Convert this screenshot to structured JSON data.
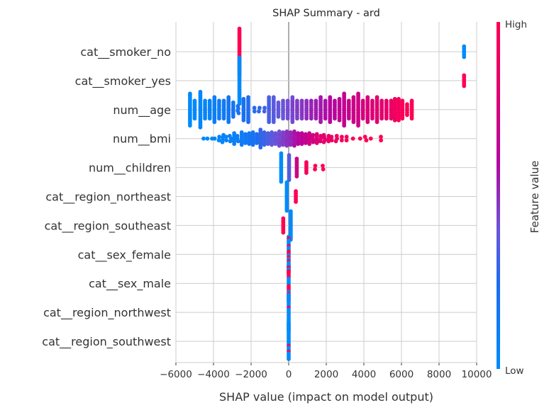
{
  "chart_data": {
    "type": "scatter",
    "subtype": "shap-beeswarm",
    "title": "SHAP Summary - ard",
    "xlabel": "SHAP value (impact on model output)",
    "ylabel": "",
    "xlim": [
      -6000,
      10000
    ],
    "xticks": [
      -6000,
      -4000,
      -2000,
      0,
      2000,
      4000,
      6000,
      8000,
      10000
    ],
    "xtick_labels": [
      "−6000",
      "−4000",
      "−2000",
      "0",
      "2000",
      "4000",
      "6000",
      "8000",
      "10000"
    ],
    "grid": true,
    "colorbar": {
      "label": "Feature value",
      "high_label": "High",
      "low_label": "Low",
      "low_color": "#008bfb",
      "high_color": "#ff0051",
      "placement": "right"
    },
    "features": [
      {
        "name": "cat__smoker_no",
        "clusters": [
          {
            "x": -2620,
            "count": 26,
            "color_value": 1.0
          },
          {
            "x": 9330,
            "count": 6,
            "color_value": 0.0
          }
        ]
      },
      {
        "name": "cat__smoker_yes",
        "clusters": [
          {
            "x": -2620,
            "count": 26,
            "color_value": 0.0
          },
          {
            "x": 9330,
            "count": 6,
            "color_value": 1.0
          }
        ]
      },
      {
        "name": "num__age",
        "clusters": [
          {
            "x": -5250,
            "count": 18,
            "color_value": 0.0
          },
          {
            "x": -5000,
            "count": 10,
            "color_value": 0.02
          },
          {
            "x": -4700,
            "count": 20,
            "color_value": 0.04
          },
          {
            "x": -4450,
            "count": 10,
            "color_value": 0.06
          },
          {
            "x": -4200,
            "count": 10,
            "color_value": 0.08
          },
          {
            "x": -3950,
            "count": 14,
            "color_value": 0.1
          },
          {
            "x": -3700,
            "count": 10,
            "color_value": 0.12
          },
          {
            "x": -3450,
            "count": 10,
            "color_value": 0.14
          },
          {
            "x": -3200,
            "count": 14,
            "color_value": 0.16
          },
          {
            "x": -2950,
            "count": 8,
            "color_value": 0.18
          },
          {
            "x": -2700,
            "count": 4,
            "color_value": 0.2
          },
          {
            "x": -2400,
            "count": 12,
            "color_value": 0.22
          },
          {
            "x": -2150,
            "count": 14,
            "color_value": 0.24
          },
          {
            "x": -1800,
            "count": 2,
            "color_value": 0.27
          },
          {
            "x": -1550,
            "count": 2,
            "color_value": 0.29
          },
          {
            "x": -1300,
            "count": 2,
            "color_value": 0.31
          },
          {
            "x": -1050,
            "count": 14,
            "color_value": 0.34
          },
          {
            "x": -800,
            "count": 14,
            "color_value": 0.36
          },
          {
            "x": -550,
            "count": 8,
            "color_value": 0.38
          },
          {
            "x": -300,
            "count": 10,
            "color_value": 0.4
          },
          {
            "x": -50,
            "count": 10,
            "color_value": 0.42
          },
          {
            "x": 200,
            "count": 14,
            "color_value": 0.44
          },
          {
            "x": 450,
            "count": 10,
            "color_value": 0.46
          },
          {
            "x": 700,
            "count": 10,
            "color_value": 0.48
          },
          {
            "x": 950,
            "count": 10,
            "color_value": 0.5
          },
          {
            "x": 1200,
            "count": 10,
            "color_value": 0.52
          },
          {
            "x": 1450,
            "count": 10,
            "color_value": 0.54
          },
          {
            "x": 1700,
            "count": 14,
            "color_value": 0.56
          },
          {
            "x": 1950,
            "count": 10,
            "color_value": 0.58
          },
          {
            "x": 2200,
            "count": 14,
            "color_value": 0.6
          },
          {
            "x": 2450,
            "count": 10,
            "color_value": 0.62
          },
          {
            "x": 2700,
            "count": 12,
            "color_value": 0.64
          },
          {
            "x": 2950,
            "count": 18,
            "color_value": 0.66
          },
          {
            "x": 3200,
            "count": 10,
            "color_value": 0.68
          },
          {
            "x": 3450,
            "count": 14,
            "color_value": 0.7
          },
          {
            "x": 3700,
            "count": 18,
            "color_value": 0.72
          },
          {
            "x": 3950,
            "count": 10,
            "color_value": 0.74
          },
          {
            "x": 4200,
            "count": 14,
            "color_value": 0.76
          },
          {
            "x": 4450,
            "count": 10,
            "color_value": 0.78
          },
          {
            "x": 4700,
            "count": 14,
            "color_value": 0.8
          },
          {
            "x": 4950,
            "count": 10,
            "color_value": 0.82
          },
          {
            "x": 5200,
            "count": 10,
            "color_value": 0.85
          },
          {
            "x": 5450,
            "count": 10,
            "color_value": 0.88
          },
          {
            "x": 5650,
            "count": 12,
            "color_value": 0.9
          },
          {
            "x": 5850,
            "count": 12,
            "color_value": 0.93
          },
          {
            "x": 6050,
            "count": 10,
            "color_value": 0.95
          },
          {
            "x": 6300,
            "count": 6,
            "color_value": 0.98
          },
          {
            "x": 6550,
            "count": 10,
            "color_value": 1.0
          }
        ]
      },
      {
        "name": "num__bmi",
        "clusters": [
          {
            "x": -4500,
            "count": 1,
            "color_value": 0.0
          },
          {
            "x": -4300,
            "count": 1,
            "color_value": 0.02
          },
          {
            "x": -4100,
            "count": 1,
            "color_value": 0.03
          },
          {
            "x": -3900,
            "count": 1,
            "color_value": 0.04
          },
          {
            "x": -3700,
            "count": 2,
            "color_value": 0.05
          },
          {
            "x": -3500,
            "count": 4,
            "color_value": 0.06
          },
          {
            "x": -3300,
            "count": 2,
            "color_value": 0.07
          },
          {
            "x": -3100,
            "count": 3,
            "color_value": 0.08
          },
          {
            "x": -2900,
            "count": 6,
            "color_value": 0.09
          },
          {
            "x": -2700,
            "count": 3,
            "color_value": 0.1
          },
          {
            "x": -2500,
            "count": 7,
            "color_value": 0.12
          },
          {
            "x": -2300,
            "count": 5,
            "color_value": 0.14
          },
          {
            "x": -2100,
            "count": 6,
            "color_value": 0.16
          },
          {
            "x": -1900,
            "count": 7,
            "color_value": 0.2
          },
          {
            "x": -1700,
            "count": 5,
            "color_value": 0.24
          },
          {
            "x": -1500,
            "count": 10,
            "color_value": 0.28
          },
          {
            "x": -1300,
            "count": 7,
            "color_value": 0.31
          },
          {
            "x": -1100,
            "count": 6,
            "color_value": 0.34
          },
          {
            "x": -900,
            "count": 7,
            "color_value": 0.37
          },
          {
            "x": -700,
            "count": 6,
            "color_value": 0.4
          },
          {
            "x": -500,
            "count": 8,
            "color_value": 0.43
          },
          {
            "x": -300,
            "count": 7,
            "color_value": 0.46
          },
          {
            "x": -100,
            "count": 8,
            "color_value": 0.49
          },
          {
            "x": 100,
            "count": 7,
            "color_value": 0.52
          },
          {
            "x": 300,
            "count": 8,
            "color_value": 0.56
          },
          {
            "x": 500,
            "count": 6,
            "color_value": 0.6
          },
          {
            "x": 700,
            "count": 6,
            "color_value": 0.63
          },
          {
            "x": 900,
            "count": 5,
            "color_value": 0.67
          },
          {
            "x": 1100,
            "count": 6,
            "color_value": 0.7
          },
          {
            "x": 1300,
            "count": 4,
            "color_value": 0.74
          },
          {
            "x": 1500,
            "count": 5,
            "color_value": 0.77
          },
          {
            "x": 1700,
            "count": 3,
            "color_value": 0.8
          },
          {
            "x": 1900,
            "count": 4,
            "color_value": 0.83
          },
          {
            "x": 2100,
            "count": 3,
            "color_value": 0.86
          },
          {
            "x": 2300,
            "count": 2,
            "color_value": 0.88
          },
          {
            "x": 2550,
            "count": 3,
            "color_value": 0.9
          },
          {
            "x": 2800,
            "count": 2,
            "color_value": 0.92
          },
          {
            "x": 3050,
            "count": 2,
            "color_value": 0.94
          },
          {
            "x": 3400,
            "count": 1,
            "color_value": 0.96
          },
          {
            "x": 3800,
            "count": 1,
            "color_value": 0.97
          },
          {
            "x": 4100,
            "count": 2,
            "color_value": 0.98
          },
          {
            "x": 4400,
            "count": 1,
            "color_value": 0.99
          },
          {
            "x": 4900,
            "count": 2,
            "color_value": 1.0
          }
        ]
      },
      {
        "name": "num__children",
        "clusters": [
          {
            "x": -400,
            "count": 16,
            "color_value": 0.0
          },
          {
            "x": 20,
            "count": 14,
            "color_value": 0.35
          },
          {
            "x": 430,
            "count": 10,
            "color_value": 0.7
          },
          {
            "x": 940,
            "count": 6,
            "color_value": 0.95
          },
          {
            "x": 1380,
            "count": 2,
            "color_value": 1.0
          },
          {
            "x": 1830,
            "count": 2,
            "color_value": 1.0
          }
        ]
      },
      {
        "name": "cat__region_northeast",
        "clusters": [
          {
            "x": -100,
            "count": 16,
            "color_value": 0.0
          },
          {
            "x": 380,
            "count": 6,
            "color_value": 1.0
          }
        ]
      },
      {
        "name": "cat__region_southeast",
        "clusters": [
          {
            "x": -290,
            "count": 8,
            "color_value": 1.0
          },
          {
            "x": 110,
            "count": 16,
            "color_value": 0.0
          }
        ]
      },
      {
        "name": "cat__sex_female",
        "clusters": [
          {
            "x": 0,
            "count": 20,
            "color_value": "mixed"
          }
        ]
      },
      {
        "name": "cat__sex_male",
        "clusters": [
          {
            "x": 0,
            "count": 20,
            "color_value": "mixed"
          }
        ]
      },
      {
        "name": "cat__region_northwest",
        "clusters": [
          {
            "x": 0,
            "count": 20,
            "color_value": "mostly-low"
          }
        ]
      },
      {
        "name": "cat__region_southwest",
        "clusters": [
          {
            "x": 0,
            "count": 20,
            "color_value": "mostly-low"
          }
        ]
      }
    ]
  }
}
